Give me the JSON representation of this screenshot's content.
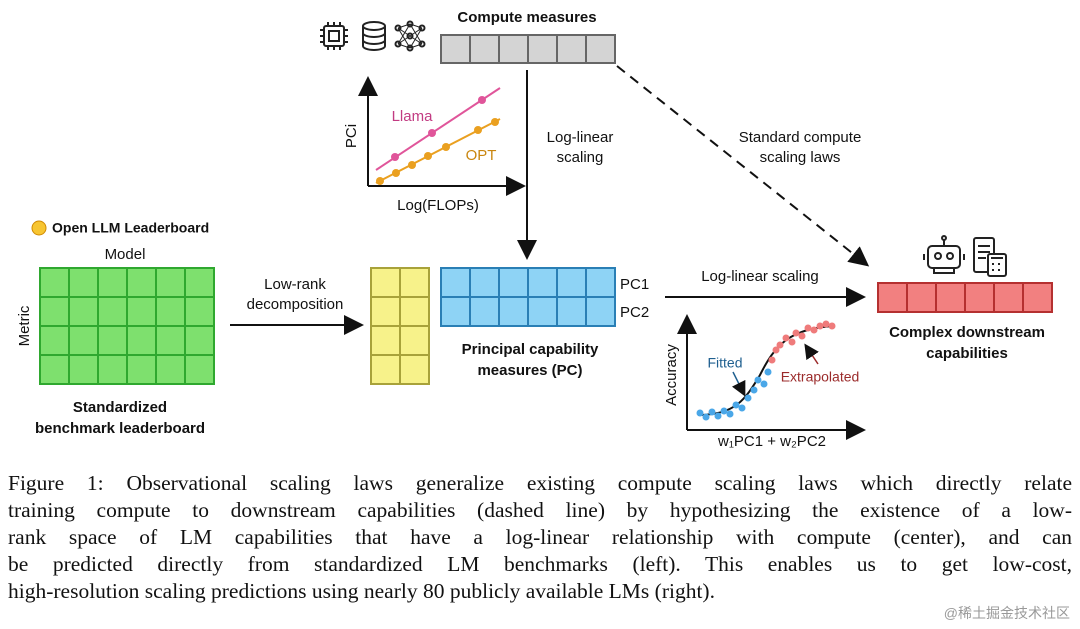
{
  "figure": {
    "compute": {
      "title": "Compute measures"
    },
    "compute_chart": {
      "y_label": "PCi",
      "x_label": "Log(FLOPs)",
      "series": [
        "Llama",
        "OPT"
      ]
    },
    "center_arrow": {
      "lines": [
        "Log-linear",
        "scaling"
      ]
    },
    "dashed_arrow": {
      "lines": [
        "Standard compute",
        "scaling laws"
      ]
    },
    "leaderboard": {
      "source": "Open LLM Leaderboard",
      "columns_label": "Model",
      "rows_label": "Metric",
      "caption_lines": [
        "Standardized",
        "benchmark leaderboard"
      ]
    },
    "decomposition": {
      "lines": [
        "Low-rank",
        "decomposition"
      ]
    },
    "pc": {
      "rows": [
        "PC1",
        "PC2"
      ],
      "caption_lines": [
        "Principal capability",
        "measures (PC)"
      ]
    },
    "right_arrow": {
      "label": "Log-linear scaling"
    },
    "downstream": {
      "caption_lines": [
        "Complex downstream",
        "capabilities"
      ]
    },
    "accuracy_chart": {
      "y_label": "Accuracy",
      "x_label": "w₁PC1 + w₂PC2",
      "fitted": "Fitted",
      "extrapolated": "Extrapolated"
    },
    "caption": {
      "lines": [
        "Figure 1: Observational scaling laws generalize existing compute scaling laws which directly relate",
        "training compute to downstream capabilities (dashed line) by hypothesizing the existence of a low-",
        "rank space of LM capabilities that have a log-linear relationship with compute (center), and can",
        "be predicted directly from standardized LM benchmarks (left).  This enables us to get low-cost,",
        "high-resolution scaling predictions using nearly 80 publicly available LMs (right)."
      ]
    },
    "watermark": "@稀土掘金技术社区"
  }
}
